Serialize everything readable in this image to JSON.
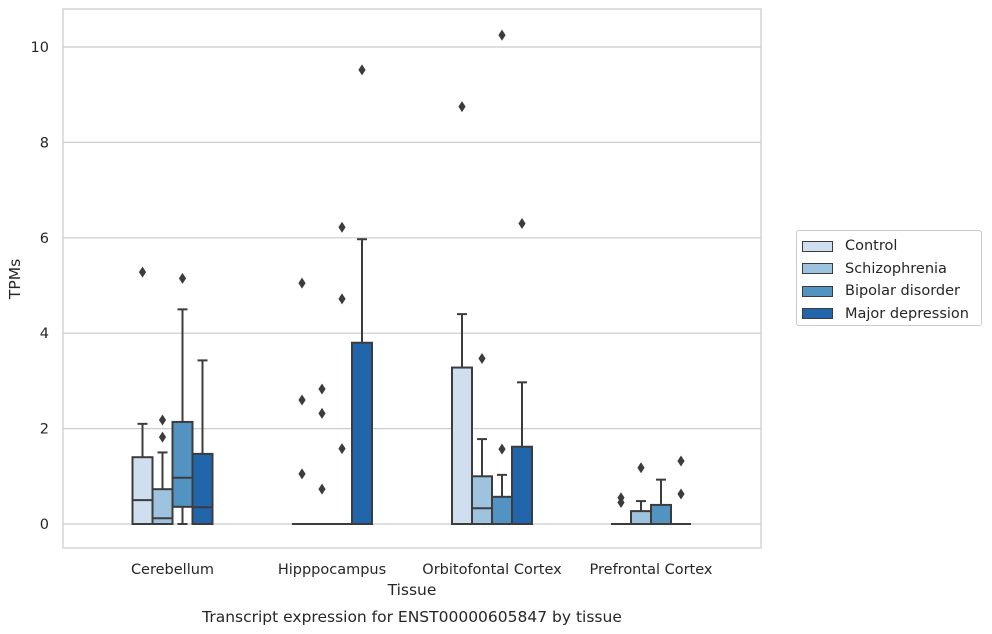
{
  "chart_data": {
    "type": "box",
    "xlabel": "Tissue",
    "ylabel": "TPMs",
    "caption": "Transcript expression for ENST00000605847 by tissue",
    "ylim": [
      -0.5,
      10.8
    ],
    "yticks": [
      "0",
      "2",
      "4",
      "6",
      "8",
      "10"
    ],
    "grid": true,
    "legend_position": "right",
    "categories": [
      "Cerebellum",
      "Hipppocampus",
      "Orbitofontal Cortex",
      "Prefrontal Cortex"
    ],
    "series": [
      {
        "name": "Control",
        "color": "#cfdff0",
        "boxes": [
          {
            "whislo": 0,
            "q1": 0,
            "med": 0.5,
            "q3": 1.4,
            "whishi": 2.1,
            "fliers": [
              5.28
            ]
          },
          {
            "whislo": 0,
            "q1": 0,
            "med": 0,
            "q3": 0,
            "whishi": 0,
            "fliers": [
              5.05,
              2.6,
              1.05
            ]
          },
          {
            "whislo": 0,
            "q1": 0,
            "med": 0,
            "q3": 3.28,
            "whishi": 4.4,
            "fliers": [
              8.75
            ]
          },
          {
            "whislo": 0,
            "q1": 0,
            "med": 0,
            "q3": 0,
            "whishi": 0,
            "fliers": [
              0.55,
              0.45
            ]
          }
        ]
      },
      {
        "name": "Schizophrenia",
        "color": "#9dc3de",
        "boxes": [
          {
            "whislo": 0,
            "q1": 0,
            "med": 0.12,
            "q3": 0.73,
            "whishi": 1.5,
            "fliers": [
              2.18,
              1.82
            ]
          },
          {
            "whislo": 0,
            "q1": 0,
            "med": 0,
            "q3": 0,
            "whishi": 0,
            "fliers": [
              2.83,
              2.32,
              0.73
            ]
          },
          {
            "whislo": 0,
            "q1": 0,
            "med": 0.33,
            "q3": 1.0,
            "whishi": 1.78,
            "fliers": [
              3.47
            ]
          },
          {
            "whislo": 0,
            "q1": 0,
            "med": 0,
            "q3": 0.27,
            "whishi": 0.48,
            "fliers": [
              1.18
            ]
          }
        ]
      },
      {
        "name": "Bipolar disorder",
        "color": "#5393c2",
        "boxes": [
          {
            "whislo": 0,
            "q1": 0.36,
            "med": 0.97,
            "q3": 2.14,
            "whishi": 4.5,
            "fliers": [
              5.15
            ]
          },
          {
            "whislo": 0,
            "q1": 0,
            "med": 0,
            "q3": 0,
            "whishi": 0,
            "fliers": [
              4.72,
              6.22,
              1.58
            ]
          },
          {
            "whislo": 0,
            "q1": 0,
            "med": 0,
            "q3": 0.57,
            "whishi": 1.03,
            "fliers": [
              10.25,
              1.57
            ]
          },
          {
            "whislo": 0,
            "q1": 0,
            "med": 0,
            "q3": 0.4,
            "whishi": 0.93,
            "fliers": []
          }
        ]
      },
      {
        "name": "Major depression",
        "color": "#2166ab",
        "boxes": [
          {
            "whislo": 0,
            "q1": 0,
            "med": 0.35,
            "q3": 1.47,
            "whishi": 3.43,
            "fliers": []
          },
          {
            "whislo": 0,
            "q1": 0,
            "med": 0,
            "q3": 3.8,
            "whishi": 5.97,
            "fliers": [
              9.52
            ]
          },
          {
            "whislo": 0,
            "q1": 0,
            "med": 0,
            "q3": 1.62,
            "whishi": 2.97,
            "fliers": [
              6.3
            ]
          },
          {
            "whislo": 0,
            "q1": 0,
            "med": 0,
            "q3": 0,
            "whishi": 0,
            "fliers": [
              1.32,
              0.63
            ]
          }
        ]
      }
    ]
  }
}
